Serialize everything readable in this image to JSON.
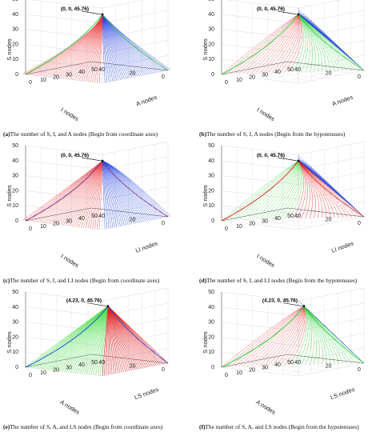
{
  "figure": {
    "panels": [
      {
        "id": "a",
        "caption_letter": "(a)",
        "caption_text": "The number of S, I, and A nodes (Begin from coordinate axes)",
        "annotation": "(0, 0, 45.76)",
        "colors": {
          "left_family": "#e8383d",
          "right_family": "#1f3fe0",
          "edge_family": "#2ccf3a"
        },
        "chart_data": {
          "type": "line",
          "title": "",
          "xlabel": "A nodes",
          "ylabel": "I nodes",
          "zlabel": "S nodes",
          "xlim": [
            0,
            50
          ],
          "ylim": [
            0,
            50
          ],
          "zlim": [
            0,
            50
          ],
          "x_ticks": [
            "0",
            "10",
            "20",
            "30",
            "40",
            "50"
          ],
          "y_ticks": [
            "0",
            "20",
            "40"
          ],
          "z_ticks": [
            "0",
            "10",
            "20",
            "30",
            "40",
            "50"
          ],
          "equilibrium_point": [
            0,
            0,
            45.76
          ],
          "curve_start": "coordinate axes"
        }
      },
      {
        "id": "b",
        "caption_letter": "(b)",
        "caption_text": "The number of S, I, A nodes (Begin from the hypotenuses)",
        "annotation": "(0, 0, 45.76)",
        "colors": {
          "left_family": "#e8383d",
          "right_family": "#1f3fe0",
          "edge_family": "#2ccf3a"
        },
        "chart_data": {
          "type": "line",
          "title": "",
          "xlabel": "A nodes",
          "ylabel": "I nodes",
          "zlabel": "S nodes",
          "xlim": [
            0,
            50
          ],
          "ylim": [
            0,
            50
          ],
          "zlim": [
            0,
            50
          ],
          "x_ticks": [
            "0",
            "10",
            "20",
            "30",
            "40",
            "50"
          ],
          "y_ticks": [
            "0",
            "20",
            "40"
          ],
          "z_ticks": [
            "0",
            "10",
            "20",
            "30",
            "40",
            "50"
          ],
          "equilibrium_point": [
            0,
            0,
            45.76
          ],
          "curve_start": "hypotenuses"
        }
      },
      {
        "id": "c",
        "caption_letter": "(c)",
        "caption_text": "The number of S, I, and LI nodes (Begin from coordinate axes)",
        "annotation": "(0, 0, 45.76)",
        "colors": {
          "left_family": "#e8383d",
          "right_family": "#1f3fe0",
          "edge_family": "#7b2a8a"
        },
        "chart_data": {
          "type": "line",
          "title": "",
          "xlabel": "LI nodes",
          "ylabel": "I nodes",
          "zlabel": "S nodes",
          "xlim": [
            0,
            50
          ],
          "ylim": [
            0,
            50
          ],
          "zlim": [
            0,
            50
          ],
          "x_ticks": [
            "0",
            "10",
            "20",
            "30",
            "40",
            "50"
          ],
          "y_ticks": [
            "0",
            "20",
            "40"
          ],
          "z_ticks": [
            "0",
            "10",
            "20",
            "30",
            "40",
            "50"
          ],
          "equilibrium_point": [
            0,
            0,
            45.76
          ],
          "curve_start": "coordinate axes"
        }
      },
      {
        "id": "d",
        "caption_letter": "(d)",
        "caption_text": "The number of S, I, and LI nodes (Begin from the hypotenuses)",
        "annotation": "(0, 0, 45.76)",
        "colors": {
          "left_family": "#3fd33f",
          "right_family": "#1f3fe0",
          "edge_family": "#e01f1f"
        },
        "chart_data": {
          "type": "line",
          "title": "",
          "xlabel": "LI nodes",
          "ylabel": "I nodes",
          "zlabel": "S nodes",
          "xlim": [
            0,
            50
          ],
          "ylim": [
            0,
            50
          ],
          "zlim": [
            0,
            50
          ],
          "x_ticks": [
            "0",
            "10",
            "20",
            "30",
            "40",
            "50"
          ],
          "y_ticks": [
            "0",
            "20",
            "40"
          ],
          "z_ticks": [
            "0",
            "10",
            "20",
            "30",
            "40",
            "50"
          ],
          "equilibrium_point": [
            0,
            0,
            45.76
          ],
          "curve_start": "hypotenuses"
        }
      },
      {
        "id": "e",
        "caption_letter": "(e)",
        "caption_text": "The number of S, A, and LS nodes (Begin from coordinate axes)",
        "annotation": "(4.23, 0, 45.76)",
        "colors": {
          "left_family": "#4fe04f",
          "right_family": "#e01f1f",
          "edge_family": "#1f3fe0"
        },
        "chart_data": {
          "type": "line",
          "title": "",
          "xlabel": "LS nodes",
          "ylabel": "A nodes",
          "zlabel": "S nodes",
          "xlim": [
            0,
            50
          ],
          "ylim": [
            0,
            50
          ],
          "zlim": [
            0,
            50
          ],
          "x_ticks": [
            "0",
            "10",
            "20",
            "30",
            "40",
            "50"
          ],
          "y_ticks": [
            "0",
            "20",
            "40"
          ],
          "z_ticks": [
            "0",
            "10",
            "20",
            "30",
            "40",
            "50"
          ],
          "equilibrium_point": [
            4.23,
            0,
            45.76
          ],
          "curve_start": "coordinate axes"
        }
      },
      {
        "id": "f",
        "caption_letter": "(f)",
        "caption_text": "The number of S, A, and LS nodes (Begin from the hypotenuses)",
        "annotation": "(4.23, 0, 45.76)",
        "colors": {
          "left_family": "#e8383d",
          "right_family": "#1f3fe0",
          "edge_family": "#2ccf3a"
        },
        "chart_data": {
          "type": "line",
          "title": "",
          "xlabel": "LS nodes",
          "ylabel": "A nodes",
          "zlabel": "S nodes",
          "xlim": [
            0,
            50
          ],
          "ylim": [
            0,
            50
          ],
          "zlim": [
            0,
            50
          ],
          "x_ticks": [
            "0",
            "10",
            "20",
            "30",
            "40",
            "50"
          ],
          "y_ticks": [
            "0",
            "20",
            "40"
          ],
          "z_ticks": [
            "0",
            "10",
            "20",
            "30",
            "40",
            "50"
          ],
          "equilibrium_point": [
            4.23,
            0,
            45.76
          ],
          "curve_start": "hypotenuses"
        }
      }
    ]
  }
}
